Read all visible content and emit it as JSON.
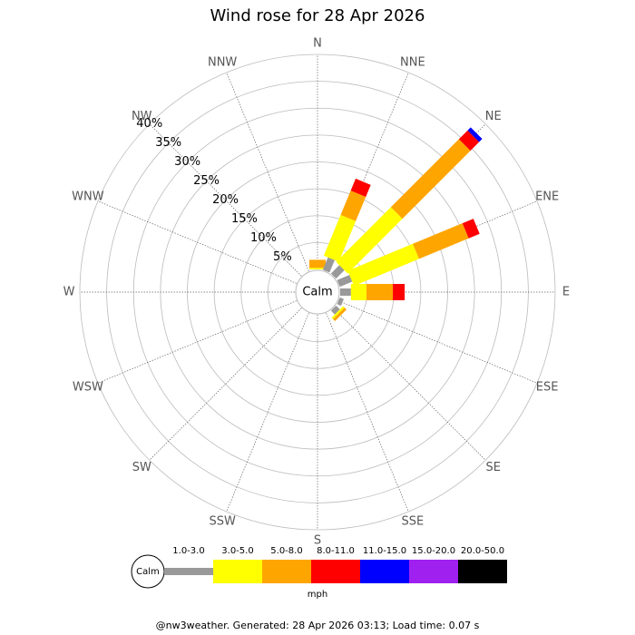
{
  "chart_data": {
    "type": "windrose",
    "title": "Wind rose for 28 Apr 2026",
    "categories": [
      "N",
      "NNE",
      "NE",
      "ENE",
      "E",
      "ESE",
      "SE",
      "SSE",
      "S",
      "SSW",
      "SW",
      "WSW",
      "W",
      "WNW",
      "NW",
      "NNW"
    ],
    "calm_label": "Calm",
    "unit": "mph",
    "footer": "@nw3weather. Generated: 28 Apr 2026 03:13; Load time: 0.07 s",
    "ylim": [
      0,
      40
    ],
    "yticks": [
      {
        "value": 5,
        "label": "5%"
      },
      {
        "value": 10,
        "label": "10%"
      },
      {
        "value": 15,
        "label": "15%"
      },
      {
        "value": 20,
        "label": "20%"
      },
      {
        "value": 25,
        "label": "25%"
      },
      {
        "value": 30,
        "label": "30%"
      },
      {
        "value": 35,
        "label": "35%"
      },
      {
        "value": 40,
        "label": "40%"
      }
    ],
    "series": [
      {
        "name": "1.0-3.0",
        "color": "#999999",
        "values": [
          0,
          2.5,
          2.2,
          2.5,
          2,
          0.8,
          1,
          0,
          0,
          0,
          0,
          0,
          0,
          0,
          0,
          0
        ]
      },
      {
        "name": "3.0-5.0",
        "color": "#ffff00",
        "values": [
          0.3,
          8.2,
          14.4,
          13.1,
          2.9,
          0,
          0.4,
          0,
          0,
          0,
          0,
          0,
          0,
          0,
          0,
          0
        ]
      },
      {
        "name": "5.0-8.0",
        "color": "#ffa500",
        "values": [
          1.5,
          4.9,
          17.9,
          10,
          4.9,
          0,
          0.5,
          0,
          0,
          0,
          0,
          0,
          0,
          0,
          0,
          0
        ]
      },
      {
        "name": "8.0-11.0",
        "color": "#ff0000",
        "values": [
          0,
          2.4,
          2.3,
          2.2,
          2.2,
          0,
          0,
          0,
          0,
          0,
          0,
          0,
          0,
          0,
          0,
          0
        ]
      },
      {
        "name": "11.0-15.0",
        "color": "#0000ff",
        "values": [
          0,
          0,
          0.8,
          0,
          0,
          0,
          0,
          0,
          0,
          0,
          0,
          0,
          0,
          0,
          0,
          0
        ]
      },
      {
        "name": "15.0-20.0",
        "color": "#a020f0",
        "values": [
          0,
          0,
          0,
          0,
          0,
          0,
          0,
          0,
          0,
          0,
          0,
          0,
          0,
          0,
          0,
          0
        ]
      },
      {
        "name": "20.0-50.0",
        "color": "#000000",
        "values": [
          0,
          0,
          0,
          0,
          0,
          0,
          0,
          0,
          0,
          0,
          0,
          0,
          0,
          0,
          0,
          0
        ]
      }
    ]
  }
}
